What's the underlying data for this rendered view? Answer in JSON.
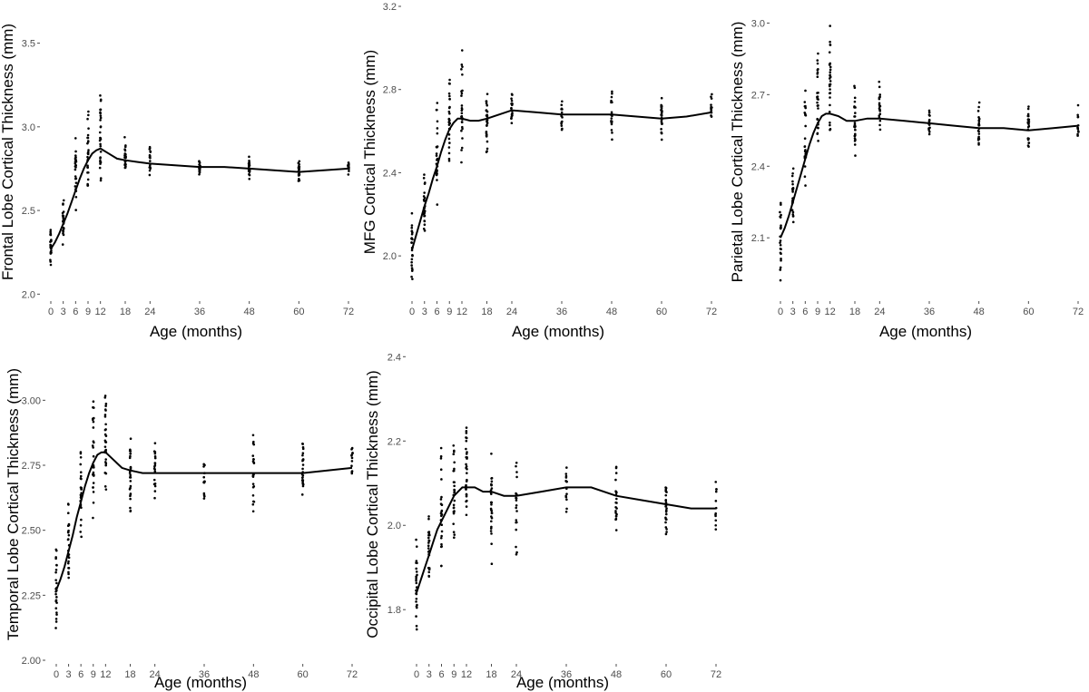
{
  "figure": {
    "background": "#ffffff",
    "point_color": "#000000",
    "line_color": "#000000"
  },
  "chart_data": [
    {
      "id": "frontal",
      "type": "scatter",
      "title": "",
      "xlabel": "Age (months)",
      "ylabel": "Frontal Lobe Cortical Thickness (mm)",
      "xlim": [
        0,
        72
      ],
      "ylim": [
        1.98,
        3.72
      ],
      "x_ticks": [
        0,
        3,
        6,
        9,
        12,
        18,
        24,
        36,
        48,
        60,
        72
      ],
      "x_tick_labels": [
        "0",
        "3",
        "6",
        "9",
        "12",
        "18",
        "24",
        "36",
        "48",
        "60",
        "72"
      ],
      "y_ticks": [
        2.0,
        2.5,
        3.0,
        3.5
      ],
      "y_tick_labels": [
        "2.0",
        "2.5",
        "3.0",
        "3.5"
      ],
      "smooth_line": {
        "x": [
          0,
          1,
          2,
          3,
          4,
          5,
          6,
          7,
          8,
          9,
          10,
          11,
          12,
          14,
          16,
          18,
          21,
          24,
          30,
          36,
          42,
          48,
          54,
          60,
          66,
          72
        ],
        "y": [
          2.27,
          2.31,
          2.36,
          2.42,
          2.48,
          2.55,
          2.62,
          2.69,
          2.75,
          2.8,
          2.84,
          2.86,
          2.87,
          2.84,
          2.81,
          2.8,
          2.79,
          2.78,
          2.77,
          2.76,
          2.76,
          2.75,
          2.74,
          2.73,
          2.74,
          2.75
        ]
      },
      "point_groups": [
        {
          "x": 0,
          "center": 2.27,
          "spread": 0.22,
          "n": 26
        },
        {
          "x": 3,
          "center": 2.45,
          "spread": 0.2,
          "n": 24
        },
        {
          "x": 6,
          "center": 2.72,
          "spread": 0.32,
          "n": 26
        },
        {
          "x": 9,
          "center": 2.86,
          "spread": 0.35,
          "n": 28
        },
        {
          "x": 12,
          "center": 2.95,
          "spread": 0.4,
          "n": 30
        },
        {
          "x": 18,
          "center": 2.8,
          "spread": 0.15,
          "n": 28
        },
        {
          "x": 24,
          "center": 2.8,
          "spread": 0.12,
          "n": 20
        },
        {
          "x": 36,
          "center": 2.76,
          "spread": 0.08,
          "n": 14
        },
        {
          "x": 48,
          "center": 2.76,
          "spread": 0.08,
          "n": 22
        },
        {
          "x": 60,
          "center": 2.74,
          "spread": 0.08,
          "n": 26
        },
        {
          "x": 72,
          "center": 2.76,
          "spread": 0.08,
          "n": 12
        }
      ]
    },
    {
      "id": "mfg",
      "type": "scatter",
      "title": "",
      "xlabel": "Age (months)",
      "ylabel": "MFG Cortical Thickness (mm)",
      "xlim": [
        0,
        72
      ],
      "ylim": [
        1.8,
        3.2
      ],
      "x_ticks": [
        0,
        3,
        6,
        9,
        12,
        18,
        24,
        36,
        48,
        60,
        72
      ],
      "x_tick_labels": [
        "0",
        "3",
        "6",
        "9",
        "12",
        "18",
        "24",
        "36",
        "48",
        "60",
        "72"
      ],
      "y_ticks": [
        2.0,
        2.4,
        2.8,
        3.2
      ],
      "y_tick_labels": [
        "2.0",
        "2.4",
        "2.8",
        "3.2"
      ],
      "smooth_line": {
        "x": [
          0,
          1,
          2,
          3,
          4,
          5,
          6,
          7,
          8,
          9,
          10,
          11,
          12,
          14,
          16,
          18,
          21,
          24,
          30,
          36,
          42,
          48,
          54,
          60,
          66,
          72
        ],
        "y": [
          2.03,
          2.1,
          2.17,
          2.24,
          2.3,
          2.37,
          2.43,
          2.5,
          2.56,
          2.61,
          2.64,
          2.66,
          2.66,
          2.65,
          2.65,
          2.66,
          2.68,
          2.7,
          2.69,
          2.68,
          2.68,
          2.68,
          2.67,
          2.66,
          2.67,
          2.69
        ]
      },
      "point_groups": [
        {
          "x": 0,
          "center": 2.03,
          "spread": 0.2,
          "n": 26
        },
        {
          "x": 3,
          "center": 2.25,
          "spread": 0.22,
          "n": 24
        },
        {
          "x": 6,
          "center": 2.5,
          "spread": 0.3,
          "n": 26
        },
        {
          "x": 9,
          "center": 2.63,
          "spread": 0.35,
          "n": 28
        },
        {
          "x": 12,
          "center": 2.72,
          "spread": 0.4,
          "n": 30
        },
        {
          "x": 18,
          "center": 2.64,
          "spread": 0.2,
          "n": 28
        },
        {
          "x": 24,
          "center": 2.7,
          "spread": 0.16,
          "n": 20
        },
        {
          "x": 36,
          "center": 2.68,
          "spread": 0.12,
          "n": 14
        },
        {
          "x": 48,
          "center": 2.67,
          "spread": 0.18,
          "n": 22
        },
        {
          "x": 60,
          "center": 2.67,
          "spread": 0.16,
          "n": 26
        },
        {
          "x": 72,
          "center": 2.72,
          "spread": 0.14,
          "n": 12
        }
      ]
    },
    {
      "id": "parietal",
      "type": "scatter",
      "title": "",
      "xlabel": "Age (months)",
      "ylabel": "Parietal Lobe Cortical Thickness (mm)",
      "xlim": [
        0,
        72
      ],
      "ylim": [
        1.85,
        3.07
      ],
      "x_ticks": [
        0,
        3,
        6,
        9,
        12,
        18,
        24,
        36,
        48,
        60,
        72
      ],
      "x_tick_labels": [
        "0",
        "3",
        "6",
        "9",
        "12",
        "18",
        "24",
        "36",
        "48",
        "60",
        "72"
      ],
      "y_ticks": [
        2.1,
        2.4,
        2.7,
        3.0
      ],
      "y_tick_labels": [
        "2.1",
        "2.4",
        "2.7",
        "3.0"
      ],
      "smooth_line": {
        "x": [
          0,
          1,
          2,
          3,
          4,
          5,
          6,
          7,
          8,
          9,
          10,
          11,
          12,
          14,
          16,
          18,
          21,
          24,
          30,
          36,
          42,
          48,
          54,
          60,
          66,
          72
        ],
        "y": [
          2.1,
          2.14,
          2.19,
          2.25,
          2.31,
          2.37,
          2.43,
          2.49,
          2.54,
          2.58,
          2.61,
          2.62,
          2.62,
          2.61,
          2.59,
          2.59,
          2.6,
          2.6,
          2.59,
          2.58,
          2.57,
          2.56,
          2.56,
          2.55,
          2.56,
          2.57
        ]
      },
      "point_groups": [
        {
          "x": 0,
          "center": 2.1,
          "spread": 0.22,
          "n": 26
        },
        {
          "x": 3,
          "center": 2.27,
          "spread": 0.22,
          "n": 24
        },
        {
          "x": 6,
          "center": 2.5,
          "spread": 0.3,
          "n": 26
        },
        {
          "x": 9,
          "center": 2.62,
          "spread": 0.35,
          "n": 28
        },
        {
          "x": 12,
          "center": 2.72,
          "spread": 0.35,
          "n": 30
        },
        {
          "x": 18,
          "center": 2.58,
          "spread": 0.22,
          "n": 28
        },
        {
          "x": 24,
          "center": 2.62,
          "spread": 0.16,
          "n": 20
        },
        {
          "x": 36,
          "center": 2.58,
          "spread": 0.1,
          "n": 14
        },
        {
          "x": 48,
          "center": 2.57,
          "spread": 0.14,
          "n": 22
        },
        {
          "x": 60,
          "center": 2.56,
          "spread": 0.14,
          "n": 26
        },
        {
          "x": 72,
          "center": 2.58,
          "spread": 0.12,
          "n": 12
        }
      ]
    },
    {
      "id": "temporal",
      "type": "scatter",
      "title": "",
      "xlabel": "Age (months)",
      "ylabel": "Temporal Lobe Cortical Thickness (mm)",
      "xlim": [
        0,
        72
      ],
      "ylim": [
        2.0,
        3.2
      ],
      "x_ticks": [
        0,
        3,
        6,
        9,
        12,
        18,
        24,
        36,
        48,
        60,
        72
      ],
      "x_tick_labels": [
        "0",
        "3",
        "6",
        "9",
        "12",
        "18",
        "24",
        "36",
        "48",
        "60",
        "72"
      ],
      "y_ticks": [
        2.0,
        2.25,
        2.5,
        2.75,
        3.0
      ],
      "y_tick_labels": [
        "2.00",
        "2.25",
        "2.50",
        "2.75",
        "3.00"
      ],
      "smooth_line": {
        "x": [
          0,
          1,
          2,
          3,
          4,
          5,
          6,
          7,
          8,
          9,
          10,
          11,
          12,
          14,
          16,
          18,
          21,
          24,
          30,
          36,
          42,
          48,
          54,
          60,
          66,
          72
        ],
        "y": [
          2.27,
          2.31,
          2.36,
          2.42,
          2.48,
          2.55,
          2.61,
          2.67,
          2.72,
          2.76,
          2.79,
          2.8,
          2.8,
          2.77,
          2.74,
          2.73,
          2.72,
          2.72,
          2.72,
          2.72,
          2.72,
          2.72,
          2.72,
          2.72,
          2.73,
          2.74
        ]
      },
      "point_groups": [
        {
          "x": 0,
          "center": 2.28,
          "spread": 0.24,
          "n": 26
        },
        {
          "x": 3,
          "center": 2.45,
          "spread": 0.22,
          "n": 24
        },
        {
          "x": 6,
          "center": 2.65,
          "spread": 0.28,
          "n": 26
        },
        {
          "x": 9,
          "center": 2.78,
          "spread": 0.32,
          "n": 28
        },
        {
          "x": 12,
          "center": 2.85,
          "spread": 0.32,
          "n": 30
        },
        {
          "x": 18,
          "center": 2.72,
          "spread": 0.24,
          "n": 28
        },
        {
          "x": 24,
          "center": 2.74,
          "spread": 0.2,
          "n": 20
        },
        {
          "x": 36,
          "center": 2.72,
          "spread": 0.14,
          "n": 14
        },
        {
          "x": 48,
          "center": 2.72,
          "spread": 0.18,
          "n": 22
        },
        {
          "x": 60,
          "center": 2.74,
          "spread": 0.14,
          "n": 26
        },
        {
          "x": 72,
          "center": 2.76,
          "spread": 0.16,
          "n": 12
        }
      ]
    },
    {
      "id": "occipital",
      "type": "scatter",
      "title": "",
      "xlabel": "Age (months)",
      "ylabel": "Occipital Lobe Cortical Thickness (mm)",
      "xlim": [
        0,
        72
      ],
      "ylim": [
        1.68,
        2.42
      ],
      "x_ticks": [
        0,
        3,
        6,
        9,
        12,
        18,
        24,
        36,
        48,
        60,
        72
      ],
      "x_tick_labels": [
        "0",
        "3",
        "6",
        "9",
        "12",
        "18",
        "24",
        "36",
        "48",
        "60",
        "72"
      ],
      "y_ticks": [
        1.8,
        2.0,
        2.2,
        2.4
      ],
      "y_tick_labels": [
        "1.8",
        "2.0",
        "2.2",
        "2.4"
      ],
      "smooth_line": {
        "x": [
          0,
          1,
          2,
          3,
          4,
          5,
          6,
          7,
          8,
          9,
          10,
          11,
          12,
          14,
          16,
          18,
          21,
          24,
          30,
          36,
          42,
          48,
          54,
          60,
          66,
          72
        ],
        "y": [
          1.84,
          1.87,
          1.9,
          1.93,
          1.96,
          1.99,
          2.01,
          2.03,
          2.05,
          2.07,
          2.08,
          2.09,
          2.09,
          2.09,
          2.08,
          2.08,
          2.07,
          2.07,
          2.08,
          2.09,
          2.09,
          2.07,
          2.06,
          2.05,
          2.04,
          2.04
        ]
      },
      "point_groups": [
        {
          "x": 0,
          "center": 1.85,
          "spread": 0.14,
          "n": 26
        },
        {
          "x": 3,
          "center": 1.95,
          "spread": 0.14,
          "n": 24
        },
        {
          "x": 6,
          "center": 2.05,
          "spread": 0.22,
          "n": 26
        },
        {
          "x": 9,
          "center": 2.08,
          "spread": 0.22,
          "n": 28
        },
        {
          "x": 12,
          "center": 2.12,
          "spread": 0.2,
          "n": 30
        },
        {
          "x": 18,
          "center": 2.05,
          "spread": 0.2,
          "n": 28
        },
        {
          "x": 24,
          "center": 2.05,
          "spread": 0.2,
          "n": 20
        },
        {
          "x": 36,
          "center": 2.08,
          "spread": 0.1,
          "n": 14
        },
        {
          "x": 48,
          "center": 2.06,
          "spread": 0.12,
          "n": 22
        },
        {
          "x": 60,
          "center": 2.04,
          "spread": 0.12,
          "n": 26
        },
        {
          "x": 72,
          "center": 2.04,
          "spread": 0.12,
          "n": 12
        }
      ]
    }
  ]
}
